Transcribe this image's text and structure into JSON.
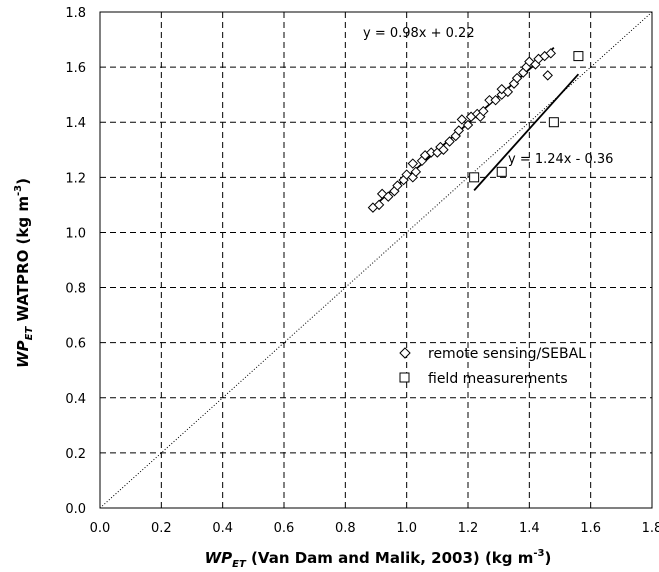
{
  "chart_data": {
    "type": "scatter",
    "xlabel": {
      "main": "WP",
      "sub": "ET",
      "rest": " (Van Dam and Malik, 2003) (kg m",
      "sup": "-3",
      "close": ")"
    },
    "ylabel": {
      "main": "WP",
      "sub": "ET",
      "rest": " WATPRO (kg m",
      "sup": "-3",
      "close": ")"
    },
    "xlim": [
      0,
      1.8
    ],
    "ylim": [
      0,
      1.8
    ],
    "x_ticks": [
      "0.0",
      "0.2",
      "0.4",
      "0.6",
      "0.8",
      "1.0",
      "1.2",
      "1.4",
      "1.6",
      "1.8"
    ],
    "y_ticks": [
      "0.0",
      "0.2",
      "0.4",
      "0.6",
      "0.8",
      "1.0",
      "1.2",
      "1.4",
      "1.6",
      "1.8"
    ],
    "grid": true,
    "legend_position": "bottom-right",
    "series": [
      {
        "name": "remote sensing/SEBAL",
        "marker": "diamond",
        "color": "#000000",
        "points": [
          [
            0.89,
            1.09
          ],
          [
            0.91,
            1.1
          ],
          [
            0.92,
            1.14
          ],
          [
            0.94,
            1.13
          ],
          [
            0.96,
            1.15
          ],
          [
            0.97,
            1.17
          ],
          [
            0.99,
            1.19
          ],
          [
            1.0,
            1.21
          ],
          [
            1.02,
            1.2
          ],
          [
            1.02,
            1.25
          ],
          [
            1.03,
            1.22
          ],
          [
            1.05,
            1.26
          ],
          [
            1.06,
            1.28
          ],
          [
            1.08,
            1.29
          ],
          [
            1.1,
            1.29
          ],
          [
            1.11,
            1.31
          ],
          [
            1.12,
            1.3
          ],
          [
            1.14,
            1.33
          ],
          [
            1.16,
            1.35
          ],
          [
            1.17,
            1.37
          ],
          [
            1.18,
            1.41
          ],
          [
            1.2,
            1.39
          ],
          [
            1.21,
            1.42
          ],
          [
            1.23,
            1.43
          ],
          [
            1.24,
            1.42
          ],
          [
            1.25,
            1.44
          ],
          [
            1.27,
            1.48
          ],
          [
            1.29,
            1.48
          ],
          [
            1.31,
            1.5
          ],
          [
            1.31,
            1.52
          ],
          [
            1.33,
            1.51
          ],
          [
            1.35,
            1.54
          ],
          [
            1.36,
            1.56
          ],
          [
            1.38,
            1.58
          ],
          [
            1.39,
            1.6
          ],
          [
            1.4,
            1.62
          ],
          [
            1.42,
            1.61
          ],
          [
            1.43,
            1.63
          ],
          [
            1.45,
            1.64
          ],
          [
            1.46,
            1.57
          ],
          [
            1.47,
            1.65
          ]
        ]
      },
      {
        "name": "field measurements",
        "marker": "square",
        "color": "#000000",
        "points": [
          [
            1.22,
            1.2
          ],
          [
            1.31,
            1.22
          ],
          [
            1.48,
            1.4
          ],
          [
            1.56,
            1.64
          ]
        ]
      }
    ],
    "trendlines": [
      {
        "label": "y = 0.98x + 0.22",
        "slope": 0.98,
        "intercept": 0.22,
        "x_range": [
          0.88,
          1.48
        ]
      },
      {
        "label": "y = 1.24x - 0.36",
        "slope": 1.24,
        "intercept": -0.36,
        "x_range": [
          1.22,
          1.56
        ]
      }
    ],
    "reference_line": {
      "style": "dotted",
      "slope": 1,
      "intercept": 0
    }
  }
}
